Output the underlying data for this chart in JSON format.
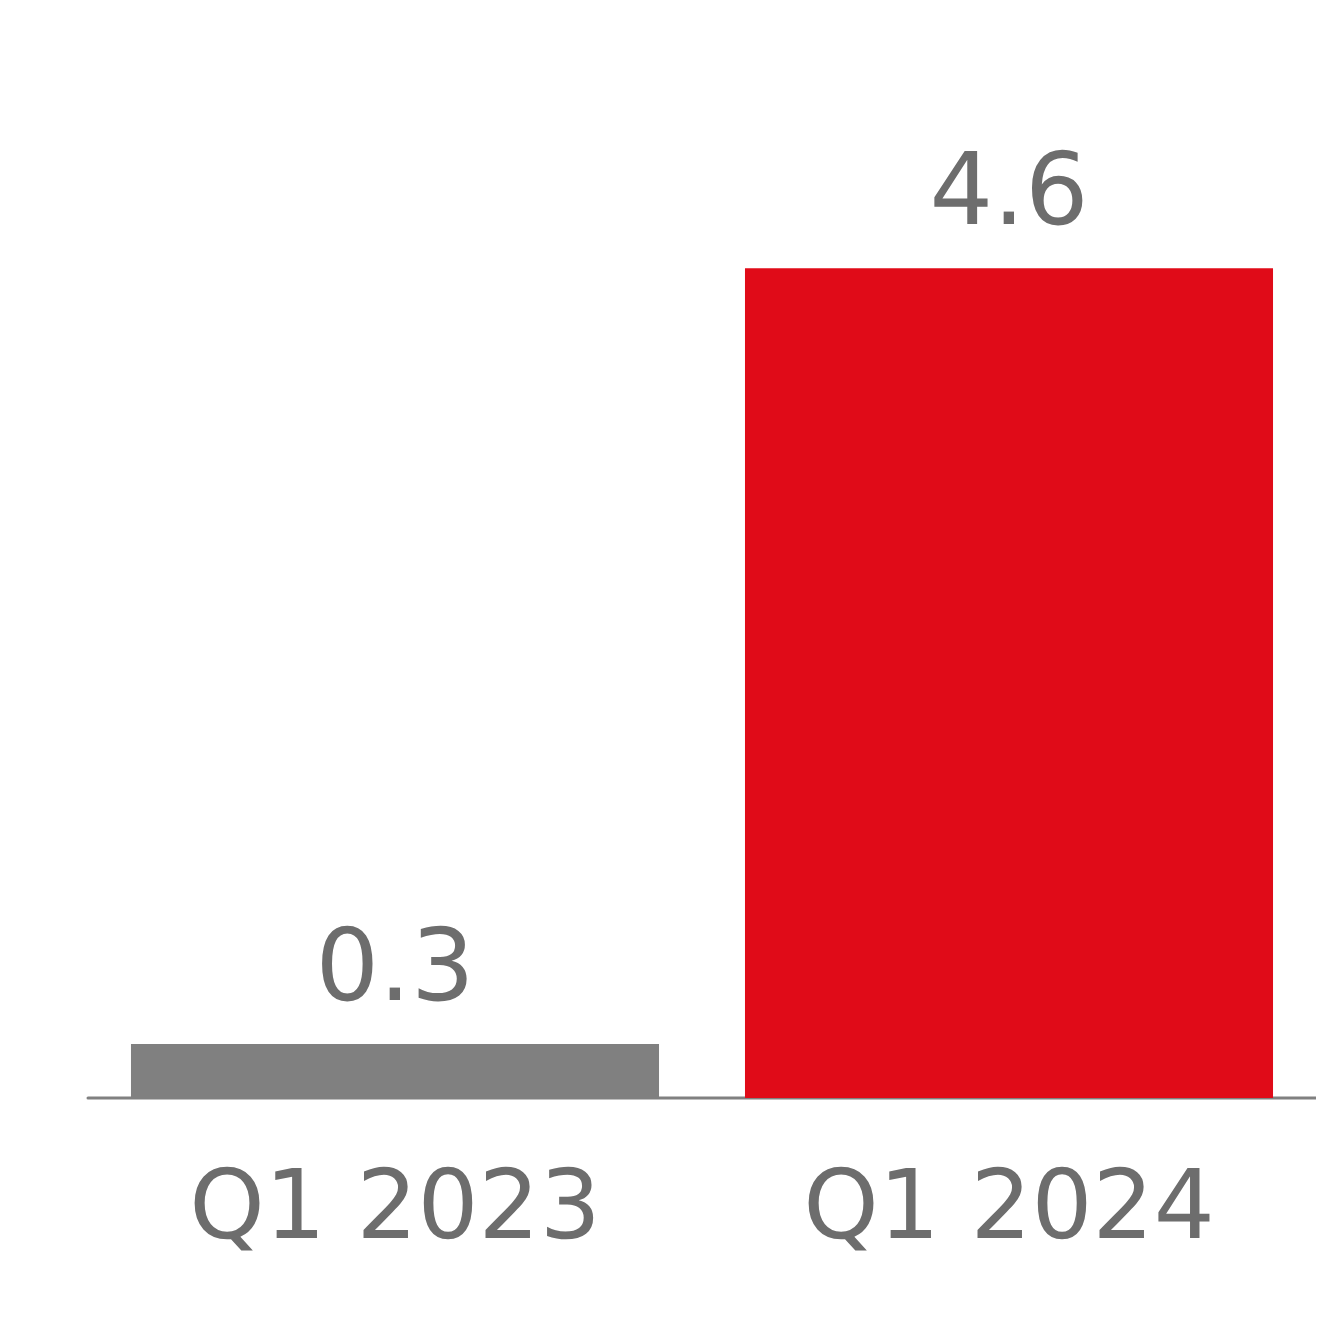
{
  "chart_data": {
    "type": "bar",
    "categories": [
      "Q1 2023",
      "Q1 2024"
    ],
    "values": [
      0.3,
      4.6
    ],
    "colors": [
      "#808080",
      "#e00b18"
    ],
    "data_labels": true
  }
}
